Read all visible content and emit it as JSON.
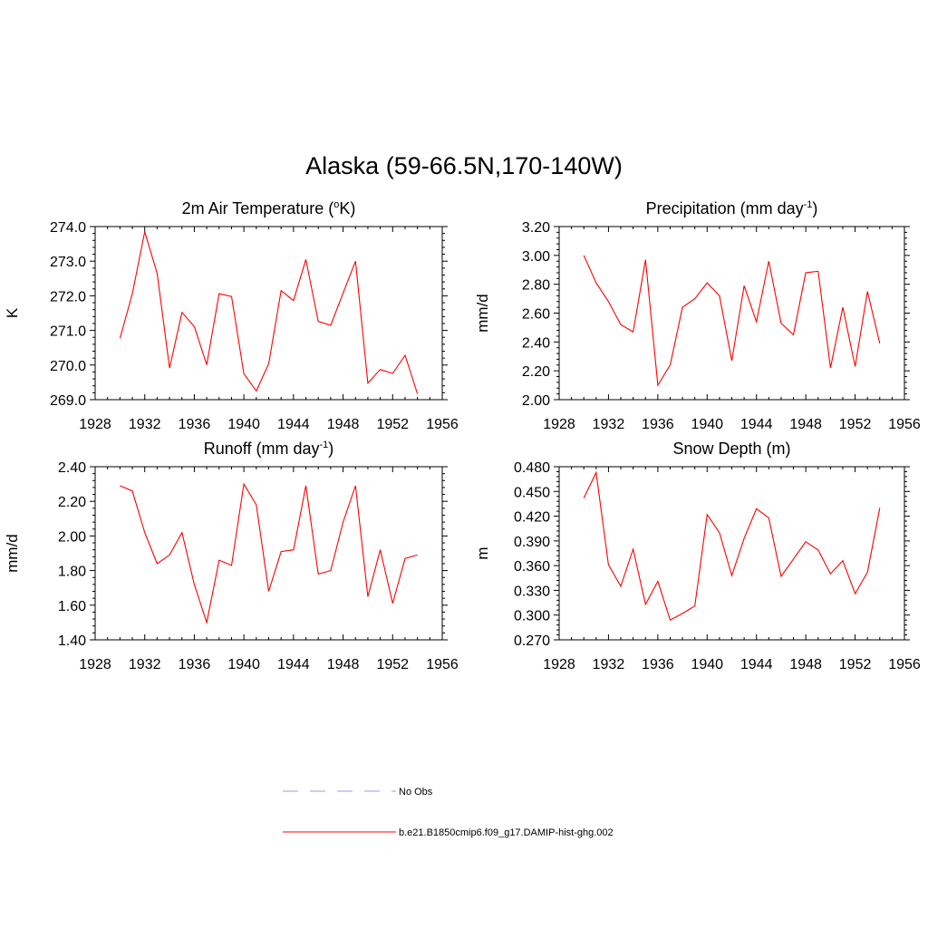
{
  "figure": {
    "title": "Alaska (59-66.5N,170-140W)"
  },
  "chart_data": [
    {
      "type": "line",
      "title": "2m Air Temperature (",
      "title_sup": "o",
      "title_after": "K)",
      "ylabel": "K",
      "xlim": [
        1928,
        1956
      ],
      "ylim": [
        269.0,
        274.0
      ],
      "xticks": [
        1928,
        1932,
        1936,
        1940,
        1944,
        1948,
        1952,
        1956
      ],
      "yticks": [
        "269.0",
        "270.0",
        "271.0",
        "272.0",
        "273.0",
        "274.0"
      ],
      "series": [
        {
          "name": "b.e21.B1850cmip6.f09_g17.DAMIP-hist-ghg.002",
          "x": [
            1930,
            1931,
            1932,
            1933,
            1934,
            1935,
            1936,
            1937,
            1938,
            1939,
            1940,
            1941,
            1942,
            1943,
            1944,
            1945,
            1946,
            1947,
            1948,
            1949,
            1950,
            1951,
            1952,
            1953,
            1954
          ],
          "values": [
            270.77,
            272.06,
            273.85,
            272.65,
            269.91,
            271.52,
            271.11,
            270.01,
            272.06,
            271.98,
            269.75,
            269.25,
            270.04,
            272.15,
            271.86,
            273.05,
            271.26,
            271.15,
            272.08,
            273.0,
            269.48,
            269.87,
            269.76,
            270.28,
            269.17
          ]
        }
      ]
    },
    {
      "type": "line",
      "title": "Precipitation (mm day",
      "title_sup": "-1",
      "title_after": ")",
      "ylabel": "mm/d",
      "xlim": [
        1928,
        1956
      ],
      "ylim": [
        2.0,
        3.2
      ],
      "xticks": [
        1928,
        1932,
        1936,
        1940,
        1944,
        1948,
        1952,
        1956
      ],
      "yticks": [
        "2.00",
        "2.20",
        "2.40",
        "2.60",
        "2.80",
        "3.00",
        "3.20"
      ],
      "series": [
        {
          "name": "b.e21.B1850cmip6.f09_g17.DAMIP-hist-ghg.002",
          "x": [
            1930,
            1931,
            1932,
            1933,
            1934,
            1935,
            1936,
            1937,
            1938,
            1939,
            1940,
            1941,
            1942,
            1943,
            1944,
            1945,
            1946,
            1947,
            1948,
            1949,
            1950,
            1951,
            1952,
            1953,
            1954
          ],
          "values": [
            3.0,
            2.81,
            2.68,
            2.52,
            2.47,
            2.97,
            2.1,
            2.24,
            2.64,
            2.7,
            2.81,
            2.72,
            2.27,
            2.79,
            2.54,
            2.96,
            2.53,
            2.45,
            2.88,
            2.89,
            2.22,
            2.64,
            2.23,
            2.75,
            2.39
          ]
        }
      ]
    },
    {
      "type": "line",
      "title": "Runoff (mm day",
      "title_sup": "-1",
      "title_after": ")",
      "ylabel": "mm/d",
      "xlim": [
        1928,
        1956
      ],
      "ylim": [
        1.4,
        2.4
      ],
      "xticks": [
        1928,
        1932,
        1936,
        1940,
        1944,
        1948,
        1952,
        1956
      ],
      "yticks": [
        "1.40",
        "1.60",
        "1.80",
        "2.00",
        "2.20",
        "2.40"
      ],
      "series": [
        {
          "name": "b.e21.B1850cmip6.f09_g17.DAMIP-hist-ghg.002",
          "x": [
            1930,
            1931,
            1932,
            1933,
            1934,
            1935,
            1936,
            1937,
            1938,
            1939,
            1940,
            1941,
            1942,
            1943,
            1944,
            1945,
            1946,
            1947,
            1948,
            1949,
            1950,
            1951,
            1952,
            1953,
            1954
          ],
          "values": [
            2.29,
            2.26,
            2.02,
            1.84,
            1.89,
            2.02,
            1.72,
            1.5,
            1.86,
            1.83,
            2.3,
            2.18,
            1.68,
            1.91,
            1.92,
            2.29,
            1.78,
            1.8,
            2.08,
            2.29,
            1.65,
            1.92,
            1.61,
            1.87,
            1.89
          ]
        }
      ]
    },
    {
      "type": "line",
      "title": "Snow Depth (m)",
      "title_sup": "",
      "title_after": "",
      "ylabel": "m",
      "xlim": [
        1928,
        1956
      ],
      "ylim": [
        0.27,
        0.48
      ],
      "xticks": [
        1928,
        1932,
        1936,
        1940,
        1944,
        1948,
        1952,
        1956
      ],
      "yticks": [
        "0.270",
        "0.300",
        "0.330",
        "0.360",
        "0.390",
        "0.420",
        "0.450",
        "0.480"
      ],
      "series": [
        {
          "name": "b.e21.B1850cmip6.f09_g17.DAMIP-hist-ghg.002",
          "x": [
            1930,
            1931,
            1932,
            1933,
            1934,
            1935,
            1936,
            1937,
            1938,
            1939,
            1940,
            1941,
            1942,
            1943,
            1944,
            1945,
            1946,
            1947,
            1948,
            1949,
            1950,
            1951,
            1952,
            1953,
            1954
          ],
          "values": [
            0.442,
            0.473,
            0.361,
            0.335,
            0.38,
            0.313,
            0.341,
            0.294,
            0.302,
            0.311,
            0.422,
            0.4,
            0.348,
            0.393,
            0.429,
            0.418,
            0.347,
            0.368,
            0.389,
            0.379,
            0.35,
            0.366,
            0.326,
            0.352,
            0.43
          ]
        }
      ]
    }
  ],
  "legend": {
    "entries": [
      {
        "label": "No Obs",
        "color": "#9999ff",
        "style": "dashed"
      },
      {
        "label": "b.e21.B1850cmip6.f09_g17.DAMIP-hist-ghg.002",
        "color": "#ff0000",
        "style": "solid"
      }
    ]
  },
  "colors": {
    "series_line": "#ff0000",
    "axes": "#000000"
  }
}
